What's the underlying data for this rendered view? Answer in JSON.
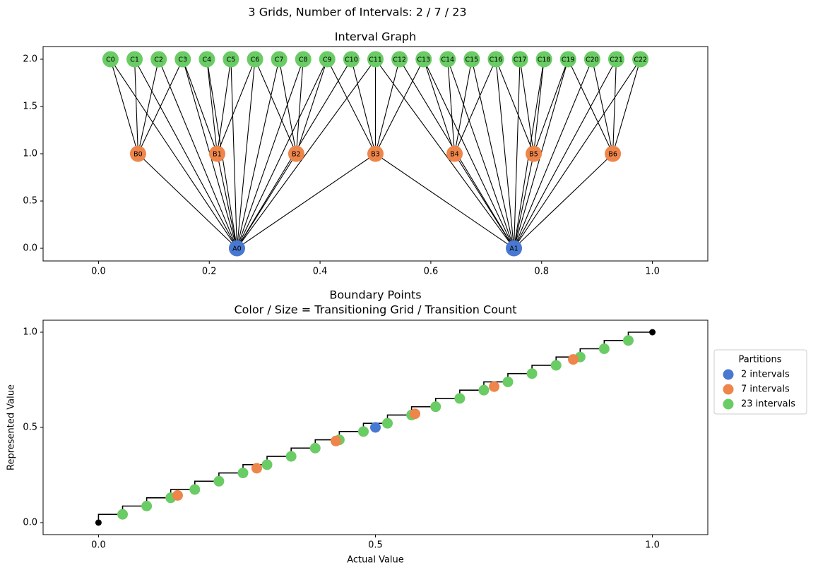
{
  "title": "3 Grids, Number of Intervals: 2 / 7 / 23",
  "chart_data": [
    {
      "type": "network",
      "title": "Interval Graph",
      "xlim": [
        -0.1,
        1.1
      ],
      "ylim": [
        -0.134,
        2.134
      ],
      "xticks": [
        {
          "value": 0,
          "label": "0.0"
        },
        {
          "value": 0.2,
          "label": "0.2"
        },
        {
          "value": 0.4,
          "label": "0.4"
        },
        {
          "value": 0.6,
          "label": "0.6"
        },
        {
          "value": 0.8,
          "label": "0.8"
        },
        {
          "value": 1,
          "label": "1.0"
        }
      ],
      "yticks": [
        {
          "value": 0,
          "label": "0.0"
        },
        {
          "value": 0.5,
          "label": "0.5"
        },
        {
          "value": 1,
          "label": "1.0"
        },
        {
          "value": 1.5,
          "label": "1.5"
        },
        {
          "value": 2,
          "label": "2.0"
        }
      ],
      "nodes": [
        {
          "label": "A0",
          "x": 0.25,
          "y": 0,
          "color": "#4878d0"
        },
        {
          "label": "A1",
          "x": 0.75,
          "y": 0,
          "color": "#4878d0"
        },
        {
          "label": "B0",
          "x": 0.0714,
          "y": 1,
          "color": "#ee854a"
        },
        {
          "label": "B1",
          "x": 0.2143,
          "y": 1,
          "color": "#ee854a"
        },
        {
          "label": "B2",
          "x": 0.3571,
          "y": 1,
          "color": "#ee854a"
        },
        {
          "label": "B3",
          "x": 0.5,
          "y": 1,
          "color": "#ee854a"
        },
        {
          "label": "B4",
          "x": 0.6429,
          "y": 1,
          "color": "#ee854a"
        },
        {
          "label": "B5",
          "x": 0.7857,
          "y": 1,
          "color": "#ee854a"
        },
        {
          "label": "B6",
          "x": 0.9286,
          "y": 1,
          "color": "#ee854a"
        },
        {
          "label": "C0",
          "x": 0.0217,
          "y": 2,
          "color": "#6acc64"
        },
        {
          "label": "C1",
          "x": 0.0652,
          "y": 2,
          "color": "#6acc64"
        },
        {
          "label": "C2",
          "x": 0.1087,
          "y": 2,
          "color": "#6acc64"
        },
        {
          "label": "C3",
          "x": 0.1522,
          "y": 2,
          "color": "#6acc64"
        },
        {
          "label": "C4",
          "x": 0.1957,
          "y": 2,
          "color": "#6acc64"
        },
        {
          "label": "C5",
          "x": 0.2391,
          "y": 2,
          "color": "#6acc64"
        },
        {
          "label": "C6",
          "x": 0.2826,
          "y": 2,
          "color": "#6acc64"
        },
        {
          "label": "C7",
          "x": 0.3261,
          "y": 2,
          "color": "#6acc64"
        },
        {
          "label": "C8",
          "x": 0.3696,
          "y": 2,
          "color": "#6acc64"
        },
        {
          "label": "C9",
          "x": 0.413,
          "y": 2,
          "color": "#6acc64"
        },
        {
          "label": "C10",
          "x": 0.4565,
          "y": 2,
          "color": "#6acc64"
        },
        {
          "label": "C11",
          "x": 0.5,
          "y": 2,
          "color": "#6acc64"
        },
        {
          "label": "C12",
          "x": 0.5435,
          "y": 2,
          "color": "#6acc64"
        },
        {
          "label": "C13",
          "x": 0.587,
          "y": 2,
          "color": "#6acc64"
        },
        {
          "label": "C14",
          "x": 0.6304,
          "y": 2,
          "color": "#6acc64"
        },
        {
          "label": "C15",
          "x": 0.6739,
          "y": 2,
          "color": "#6acc64"
        },
        {
          "label": "C16",
          "x": 0.7174,
          "y": 2,
          "color": "#6acc64"
        },
        {
          "label": "C17",
          "x": 0.7609,
          "y": 2,
          "color": "#6acc64"
        },
        {
          "label": "C18",
          "x": 0.8043,
          "y": 2,
          "color": "#6acc64"
        },
        {
          "label": "C19",
          "x": 0.8478,
          "y": 2,
          "color": "#6acc64"
        },
        {
          "label": "C20",
          "x": 0.8913,
          "y": 2,
          "color": "#6acc64"
        },
        {
          "label": "C21",
          "x": 0.9348,
          "y": 2,
          "color": "#6acc64"
        },
        {
          "label": "C22",
          "x": 0.9783,
          "y": 2,
          "color": "#6acc64"
        }
      ],
      "edges": [
        [
          2,
          0
        ],
        [
          3,
          0
        ],
        [
          4,
          0
        ],
        [
          5,
          0
        ],
        [
          5,
          1
        ],
        [
          6,
          1
        ],
        [
          7,
          1
        ],
        [
          8,
          1
        ],
        [
          9,
          0
        ],
        [
          10,
          0
        ],
        [
          11,
          0
        ],
        [
          12,
          0
        ],
        [
          13,
          0
        ],
        [
          14,
          0
        ],
        [
          15,
          0
        ],
        [
          16,
          0
        ],
        [
          17,
          0
        ],
        [
          18,
          0
        ],
        [
          19,
          0
        ],
        [
          20,
          0
        ],
        [
          20,
          1
        ],
        [
          21,
          1
        ],
        [
          22,
          1
        ],
        [
          23,
          1
        ],
        [
          24,
          1
        ],
        [
          25,
          1
        ],
        [
          26,
          1
        ],
        [
          27,
          1
        ],
        [
          28,
          1
        ],
        [
          29,
          1
        ],
        [
          30,
          1
        ],
        [
          31,
          1
        ],
        [
          9,
          2
        ],
        [
          10,
          2
        ],
        [
          11,
          2
        ],
        [
          12,
          2
        ],
        [
          12,
          3
        ],
        [
          13,
          3
        ],
        [
          14,
          3
        ],
        [
          15,
          3
        ],
        [
          15,
          4
        ],
        [
          16,
          4
        ],
        [
          17,
          4
        ],
        [
          18,
          4
        ],
        [
          18,
          5
        ],
        [
          19,
          5
        ],
        [
          20,
          5
        ],
        [
          21,
          5
        ],
        [
          22,
          5
        ],
        [
          22,
          6
        ],
        [
          23,
          6
        ],
        [
          24,
          6
        ],
        [
          25,
          6
        ],
        [
          25,
          7
        ],
        [
          26,
          7
        ],
        [
          27,
          7
        ],
        [
          28,
          7
        ],
        [
          28,
          8
        ],
        [
          29,
          8
        ],
        [
          30,
          8
        ],
        [
          31,
          8
        ]
      ]
    },
    {
      "type": "scatter",
      "title": [
        "Boundary Points",
        "Color / Size = Transitioning Grid / Transition Count"
      ],
      "xlabel": "Actual Value",
      "ylabel": "Represented Value",
      "xlim": [
        -0.1,
        1.1
      ],
      "ylim": [
        -0.063,
        1.063
      ],
      "xticks": [
        {
          "value": 0,
          "label": "0.0"
        },
        {
          "value": 0.5,
          "label": "0.5"
        },
        {
          "value": 1,
          "label": "1.0"
        }
      ],
      "yticks": [
        {
          "value": 0,
          "label": "0.0"
        },
        {
          "value": 0.5,
          "label": "0.5"
        },
        {
          "value": 1,
          "label": "1.0"
        }
      ],
      "step_line": {
        "color": "#000000",
        "x": [
          0,
          0.0435,
          0.087,
          0.1304,
          0.1739,
          0.2174,
          0.2609,
          0.3043,
          0.3478,
          0.3913,
          0.4348,
          0.4783,
          0.5217,
          0.5652,
          0.6087,
          0.6522,
          0.6957,
          0.7391,
          0.7826,
          0.8261,
          0.8696,
          0.913,
          0.9565,
          1
        ],
        "y": [
          0,
          0.0435,
          0.087,
          0.1304,
          0.1739,
          0.2174,
          0.2609,
          0.3043,
          0.3478,
          0.3913,
          0.4348,
          0.4783,
          0.5217,
          0.5652,
          0.6087,
          0.6522,
          0.6957,
          0.7391,
          0.7826,
          0.8261,
          0.8696,
          0.913,
          0.9565,
          1
        ]
      },
      "endpoints": {
        "color": "#000000",
        "x": [
          0,
          1
        ],
        "y": [
          0,
          1
        ]
      },
      "legend_title": "Partitions",
      "legend": "outside right",
      "series": [
        {
          "name": "2 intervals",
          "color": "#4878d0",
          "x": [
            0.5
          ],
          "values": [
            0.5
          ]
        },
        {
          "name": "7 intervals",
          "color": "#ee854a",
          "x": [
            0.1429,
            0.2857,
            0.4286,
            0.5714,
            0.7143,
            0.8571
          ],
          "values": [
            0.1429,
            0.2857,
            0.4286,
            0.5714,
            0.7143,
            0.8571
          ]
        },
        {
          "name": "23 intervals",
          "color": "#6acc64",
          "x": [
            0.0435,
            0.087,
            0.1304,
            0.1739,
            0.2174,
            0.2609,
            0.3043,
            0.3478,
            0.3913,
            0.4348,
            0.4783,
            0.5217,
            0.5652,
            0.6087,
            0.6522,
            0.6957,
            0.7391,
            0.7826,
            0.8261,
            0.8696,
            0.913,
            0.9565
          ],
          "values": [
            0.0435,
            0.087,
            0.1304,
            0.1739,
            0.2174,
            0.2609,
            0.3043,
            0.3478,
            0.3913,
            0.4348,
            0.4783,
            0.5217,
            0.5652,
            0.6087,
            0.6522,
            0.6957,
            0.7391,
            0.7826,
            0.8261,
            0.8696,
            0.913,
            0.9565
          ]
        }
      ]
    }
  ]
}
